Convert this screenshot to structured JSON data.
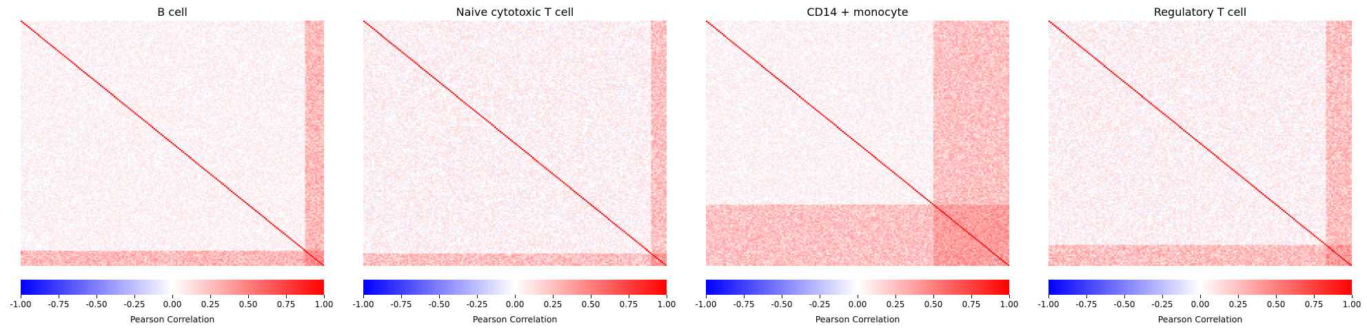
{
  "chart_data": [
    {
      "type": "heatmap",
      "title": "B cell",
      "colorbar_label": "Pearson Correlation",
      "value_range": [
        -1.0,
        1.0
      ],
      "colormap": [
        "#0000ff",
        "#ffffff",
        "#ff0000"
      ],
      "ticks": [
        "-1.00",
        "-0.75",
        "-0.50",
        "-0.25",
        "0.00",
        "0.25",
        "0.50",
        "0.75",
        "1.00"
      ],
      "matrix_summary": {
        "diagonal": 1.0,
        "typical_off_diagonal": 0.08,
        "high_block_tail_fraction": 0.06,
        "high_block_value": 0.35
      }
    },
    {
      "type": "heatmap",
      "title": "Naive cytotoxic T cell",
      "colorbar_label": "Pearson Correlation",
      "value_range": [
        -1.0,
        1.0
      ],
      "colormap": [
        "#0000ff",
        "#ffffff",
        "#ff0000"
      ],
      "ticks": [
        "-1.00",
        "-0.75",
        "-0.50",
        "-0.25",
        "0.00",
        "0.25",
        "0.50",
        "0.75",
        "1.00"
      ],
      "matrix_summary": {
        "diagonal": 1.0,
        "typical_off_diagonal": 0.1,
        "high_block_tail_fraction": 0.05,
        "high_block_value": 0.3
      }
    },
    {
      "type": "heatmap",
      "title": "CD14 + monocyte",
      "colorbar_label": "Pearson Correlation",
      "value_range": [
        -1.0,
        1.0
      ],
      "colormap": [
        "#0000ff",
        "#ffffff",
        "#ff0000"
      ],
      "ticks": [
        "-1.00",
        "-0.75",
        "-0.50",
        "-0.25",
        "0.00",
        "0.25",
        "0.50",
        "0.75",
        "1.00"
      ],
      "matrix_summary": {
        "diagonal": 1.0,
        "typical_off_diagonal": 0.08,
        "high_block_tail_fraction": 0.25,
        "high_block_value": 0.3
      }
    },
    {
      "type": "heatmap",
      "title": "Regulatory T cell",
      "colorbar_label": "Pearson Correlation",
      "value_range": [
        -1.0,
        1.0
      ],
      "colormap": [
        "#0000ff",
        "#ffffff",
        "#ff0000"
      ],
      "ticks": [
        "-1.00",
        "-0.75",
        "-0.50",
        "-0.25",
        "0.00",
        "0.25",
        "0.50",
        "0.75",
        "1.00"
      ],
      "matrix_summary": {
        "diagonal": 1.0,
        "typical_off_diagonal": 0.1,
        "high_block_tail_fraction": 0.08,
        "high_block_value": 0.3
      }
    }
  ]
}
